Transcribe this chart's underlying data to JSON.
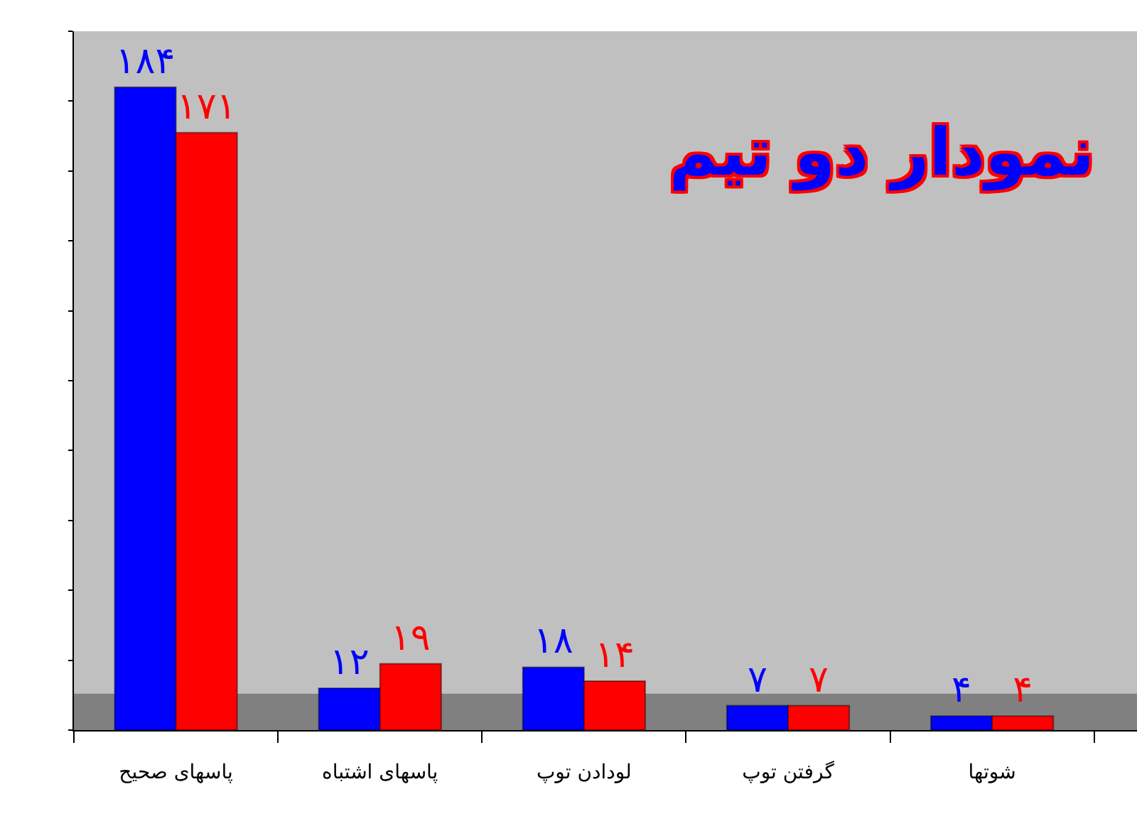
{
  "chart_data": {
    "type": "bar",
    "title": "نمودار دو تیم",
    "categories": [
      "پاسهای صحیح",
      "پاسهای اشتباه",
      "لودادن توپ",
      "گرفتن توپ",
      "شوتها"
    ],
    "series": [
      {
        "color": "#0000ff",
        "values": [
          184,
          12,
          18,
          7,
          4
        ],
        "value_labels": [
          "۱۸۴",
          "۱۲",
          "۱۸",
          "۷",
          "۴"
        ]
      },
      {
        "color": "#ff0000",
        "values": [
          171,
          19,
          14,
          7,
          4
        ],
        "value_labels": [
          "۱۷۱",
          "۱۹",
          "۱۴",
          "۷",
          "۴"
        ]
      }
    ],
    "ylim": [
      0,
      200
    ],
    "yticks": [
      {
        "value": 0,
        "label": null
      },
      {
        "value": 20,
        "label": null
      },
      {
        "value": 40,
        "label": null
      },
      {
        "value": 60,
        "label": null
      },
      {
        "value": 80,
        "label": null
      },
      {
        "value": 100,
        "label": null
      },
      {
        "value": 120,
        "label": null
      },
      {
        "value": 140,
        "label": null
      },
      {
        "value": 160,
        "label": null
      },
      {
        "value": 180,
        "label": null
      },
      {
        "value": 200,
        "label": null
      }
    ],
    "tick_labels": "x",
    "grid": false,
    "legend": false
  }
}
